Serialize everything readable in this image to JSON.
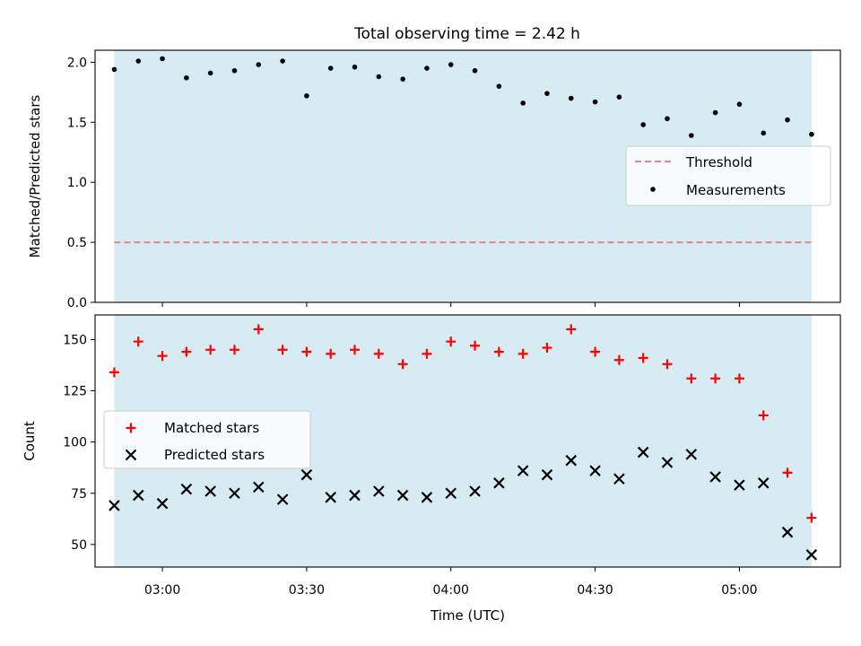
{
  "title": "Total observing time = 2.42 h",
  "colors": {
    "background": "#ffffff",
    "span_fill": "#add8e6",
    "threshold": "#f08080",
    "measurements": "#000000",
    "matched": "#ff0000",
    "predicted": "#000000",
    "axes": "#000000"
  },
  "chart_data": [
    {
      "type": "scatter",
      "ylabel": "Matched/Predicted stars",
      "ylim": [
        0.0,
        2.1
      ],
      "yticks": [
        0.0,
        0.5,
        1.0,
        1.5,
        2.0
      ],
      "ytick_labels": [
        "0.0",
        "0.5",
        "1.0",
        "1.5",
        "2.0"
      ],
      "grid": false,
      "legend_position": "center-right",
      "x_time_labels_shown": false,
      "threshold": {
        "name": "Threshold",
        "value": 0.5,
        "style": "dashed"
      },
      "series": [
        {
          "name": "Measurements",
          "marker": "dot",
          "x": [
            "02:50",
            "02:55",
            "03:00",
            "03:05",
            "03:10",
            "03:15",
            "03:20",
            "03:25",
            "03:30",
            "03:35",
            "03:40",
            "03:45",
            "03:50",
            "03:55",
            "04:00",
            "04:05",
            "04:10",
            "04:15",
            "04:20",
            "04:25",
            "04:30",
            "04:35",
            "04:40",
            "04:45",
            "04:50",
            "04:55",
            "05:00",
            "05:05",
            "05:10",
            "05:15"
          ],
          "y": [
            1.94,
            2.01,
            2.03,
            1.87,
            1.91,
            1.93,
            1.98,
            2.01,
            1.72,
            1.95,
            1.96,
            1.88,
            1.86,
            1.95,
            1.98,
            1.93,
            1.8,
            1.66,
            1.74,
            1.7,
            1.67,
            1.71,
            1.48,
            1.53,
            1.39,
            1.58,
            1.65,
            1.41,
            1.52,
            1.4
          ]
        }
      ]
    },
    {
      "type": "scatter",
      "xlabel": "Time (UTC)",
      "ylabel": "Count",
      "ylim": [
        39,
        162
      ],
      "yticks": [
        50,
        75,
        100,
        125,
        150
      ],
      "ytick_labels": [
        "50",
        "75",
        "100",
        "125",
        "150"
      ],
      "xlim": [
        "02:46",
        "05:21"
      ],
      "xticks": [
        "03:00",
        "03:30",
        "04:00",
        "04:30",
        "05:00"
      ],
      "xtick_labels": [
        "03:00",
        "03:30",
        "04:00",
        "04:30",
        "05:00"
      ],
      "grid": false,
      "legend_position": "center-left",
      "series": [
        {
          "name": "Matched stars",
          "marker": "plus",
          "x": [
            "02:50",
            "02:55",
            "03:00",
            "03:05",
            "03:10",
            "03:15",
            "03:20",
            "03:25",
            "03:30",
            "03:35",
            "03:40",
            "03:45",
            "03:50",
            "03:55",
            "04:00",
            "04:05",
            "04:10",
            "04:15",
            "04:20",
            "04:25",
            "04:30",
            "04:35",
            "04:40",
            "04:45",
            "04:50",
            "04:55",
            "05:00",
            "05:05",
            "05:10",
            "05:15"
          ],
          "y": [
            134,
            149,
            142,
            144,
            145,
            145,
            155,
            145,
            144,
            143,
            145,
            143,
            138,
            143,
            149,
            147,
            144,
            143,
            146,
            155,
            144,
            140,
            141,
            138,
            131,
            131,
            131,
            113,
            85,
            63
          ]
        },
        {
          "name": "Predicted stars",
          "marker": "x",
          "x": [
            "02:50",
            "02:55",
            "03:00",
            "03:05",
            "03:10",
            "03:15",
            "03:20",
            "03:25",
            "03:30",
            "03:35",
            "03:40",
            "03:45",
            "03:50",
            "03:55",
            "04:00",
            "04:05",
            "04:10",
            "04:15",
            "04:20",
            "04:25",
            "04:30",
            "04:35",
            "04:40",
            "04:45",
            "04:50",
            "04:55",
            "05:00",
            "05:05",
            "05:10",
            "05:15"
          ],
          "y": [
            69,
            74,
            70,
            77,
            76,
            75,
            78,
            72,
            84,
            73,
            74,
            76,
            74,
            73,
            75,
            76,
            80,
            86,
            84,
            91,
            86,
            82,
            95,
            90,
            94,
            83,
            79,
            80,
            56,
            45
          ]
        }
      ]
    }
  ]
}
